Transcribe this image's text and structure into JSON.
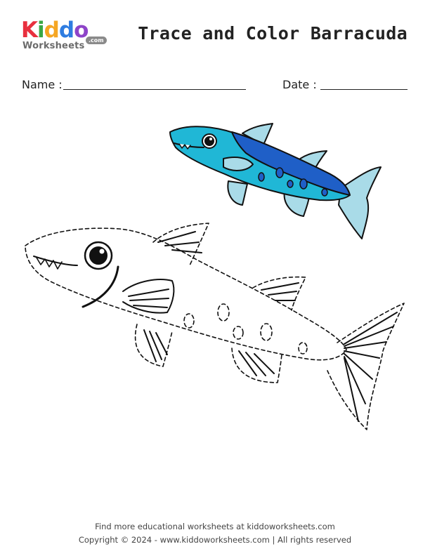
{
  "logo": {
    "letters": [
      "K",
      "i",
      "d",
      "d",
      "o"
    ],
    "letter_colors": [
      "#e8303e",
      "#3aa845",
      "#f5a623",
      "#2f7de1",
      "#8e44c9"
    ],
    "sub": "Worksheets",
    "com": ".com"
  },
  "title": "Trace and Color Barracuda",
  "fields": {
    "name_label": "Name :",
    "date_label": "Date :"
  },
  "illustration": {
    "colored_fish": "barracuda",
    "colors": {
      "body_light": "#20b7d6",
      "body_dark": "#1f5fc7",
      "fin": "#a9dbe8",
      "spots": "#1f5fc7",
      "outline": "#111111"
    },
    "tracing_fish": "barracuda-dashed-outline"
  },
  "footer": {
    "line1": "Find more educational worksheets at kiddoworksheets.com",
    "line2": "Copyright © 2024 - www.kiddoworksheets.com  |  All rights reserved"
  }
}
